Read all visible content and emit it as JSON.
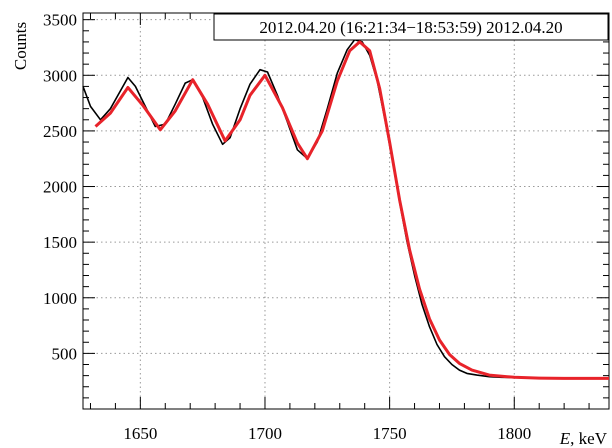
{
  "chart_data": {
    "type": "line",
    "title": "",
    "annotation": "2012.04.20 (16:21:34−18:53:59) 2012.04.20",
    "xlabel_var": "E",
    "xlabel_unit": ", keV",
    "ylabel": "Counts",
    "xlim": [
      1627,
      1838
    ],
    "ylim": [
      0,
      3560
    ],
    "x_ticks": [
      1650,
      1700,
      1750,
      1800
    ],
    "x_tick_labels": [
      "1650",
      "1700",
      "1750",
      "1800"
    ],
    "y_ticks": [
      500,
      1000,
      1500,
      2000,
      2500,
      3000,
      3500
    ],
    "y_tick_labels": [
      "500",
      "1000",
      "1500",
      "2000",
      "2500",
      "3000",
      "3500"
    ],
    "grid": true,
    "series": [
      {
        "role": "data",
        "color": "#000000",
        "x": [
          1627,
          1630,
          1634,
          1638,
          1642,
          1645,
          1648,
          1652,
          1656,
          1660,
          1664,
          1668,
          1671,
          1675,
          1679,
          1683,
          1686,
          1690,
          1694,
          1698,
          1701,
          1705,
          1709,
          1713,
          1717,
          1721,
          1725,
          1729,
          1733,
          1736,
          1739,
          1742,
          1745,
          1748,
          1751,
          1754,
          1757,
          1760,
          1763,
          1766,
          1769,
          1772,
          1775,
          1778,
          1781,
          1785,
          1790,
          1795,
          1800,
          1805,
          1810,
          1815,
          1820,
          1825,
          1830,
          1835,
          1838
        ],
        "y": [
          2900,
          2720,
          2600,
          2700,
          2860,
          2980,
          2900,
          2720,
          2540,
          2560,
          2740,
          2930,
          2960,
          2800,
          2560,
          2380,
          2440,
          2700,
          2920,
          3050,
          3030,
          2820,
          2580,
          2330,
          2250,
          2400,
          2700,
          3020,
          3230,
          3320,
          3300,
          3180,
          2950,
          2620,
          2250,
          1860,
          1500,
          1200,
          940,
          740,
          580,
          470,
          400,
          350,
          320,
          305,
          290,
          285,
          282,
          280,
          278,
          276,
          275,
          275,
          274,
          274,
          276
        ]
      },
      {
        "role": "fit",
        "color": "#e8232a",
        "x": [
          1632,
          1638,
          1645,
          1651,
          1658,
          1664,
          1671,
          1677,
          1684,
          1690,
          1694,
          1700,
          1707,
          1713,
          1717,
          1723,
          1729,
          1734,
          1738,
          1742,
          1746,
          1750,
          1754,
          1758,
          1762,
          1766,
          1770,
          1774,
          1778,
          1783,
          1790,
          1800,
          1810,
          1820,
          1830,
          1838
        ],
        "y": [
          2540,
          2660,
          2890,
          2730,
          2510,
          2680,
          2960,
          2740,
          2410,
          2600,
          2820,
          3000,
          2710,
          2390,
          2250,
          2500,
          2950,
          3220,
          3300,
          3220,
          2880,
          2400,
          1880,
          1430,
          1080,
          810,
          620,
          490,
          410,
          350,
          305,
          285,
          278,
          275,
          275,
          275
        ]
      }
    ]
  }
}
